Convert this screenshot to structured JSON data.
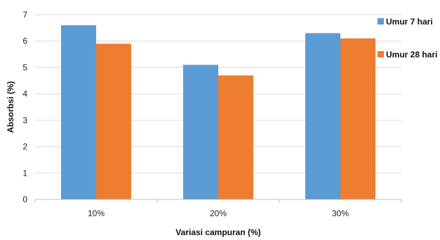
{
  "chart_data": {
    "type": "bar",
    "categories": [
      "10%",
      "20%",
      "30%"
    ],
    "series": [
      {
        "name": "Umur 7 hari",
        "values": [
          6.6,
          5.1,
          6.3
        ],
        "color": "#5B9BD5"
      },
      {
        "name": "Umur 28 hari",
        "values": [
          5.9,
          4.7,
          6.1
        ],
        "color": "#ED7D31"
      }
    ],
    "xlabel": "Variasi campuran (%)",
    "ylabel": "Absorbsi (%)",
    "ylim": [
      0,
      7
    ],
    "yticks": [
      0,
      1,
      2,
      3,
      4,
      5,
      6,
      7
    ],
    "grid": true,
    "legend_position": "right"
  }
}
